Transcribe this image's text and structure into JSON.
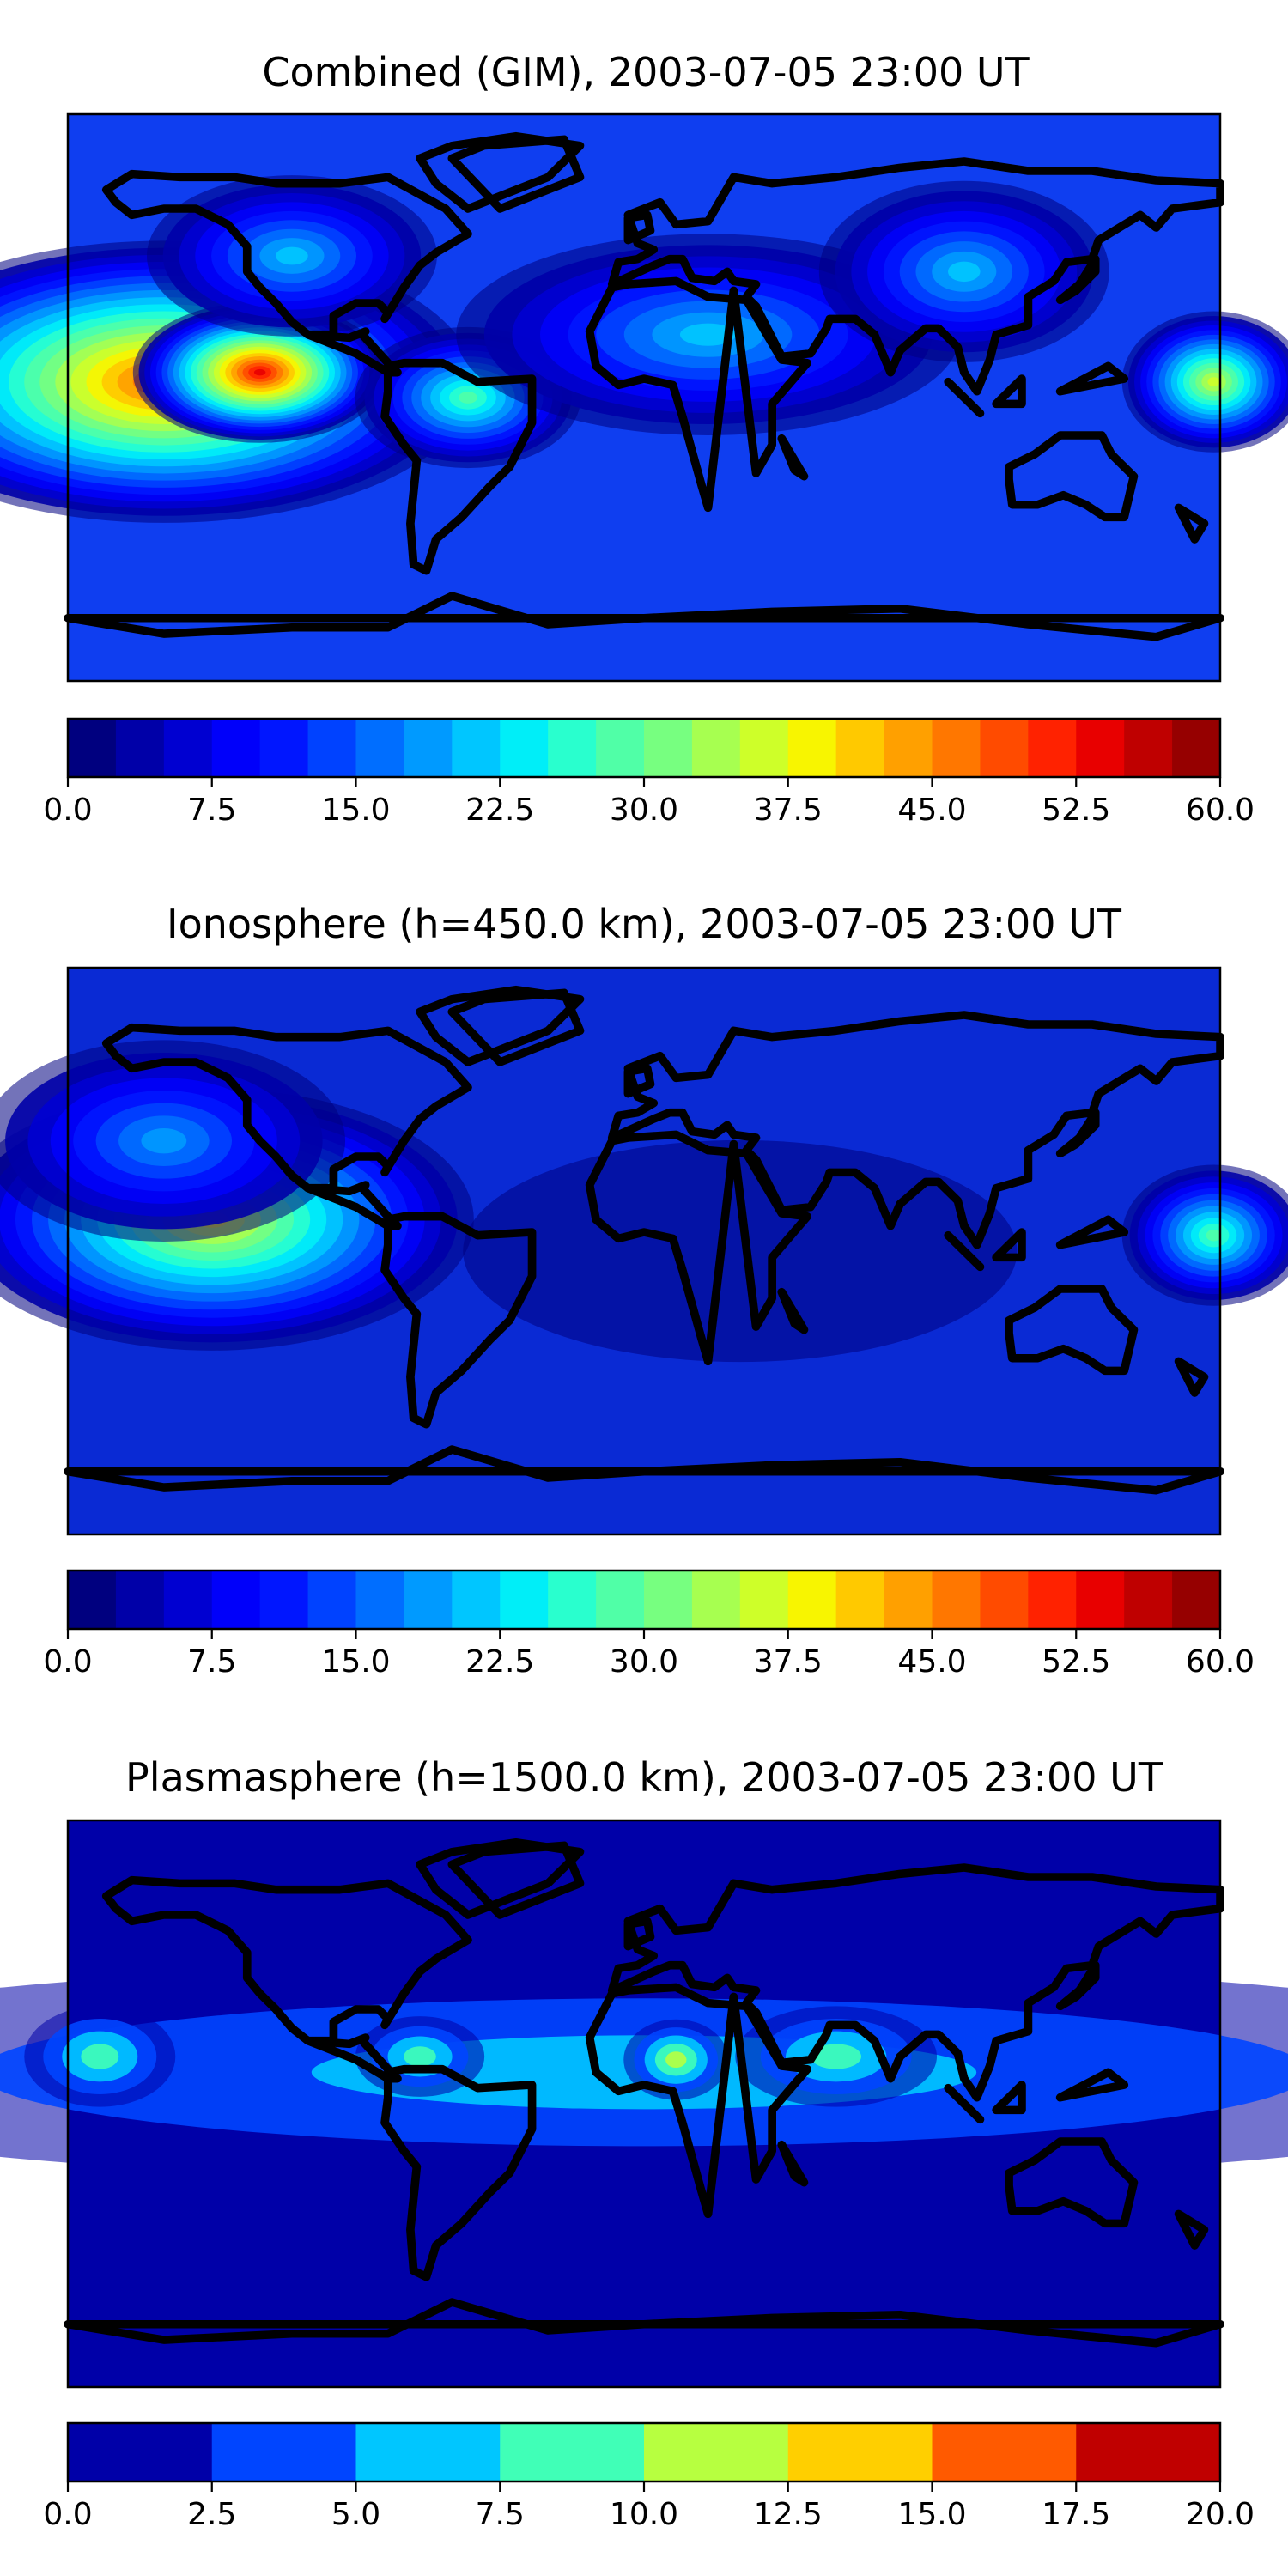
{
  "figure": {
    "panels": [
      {
        "title": "Combined (GIM), 2003-07-05 23:00 UT",
        "colorbar": {
          "ticks": [
            "0.0",
            "7.5",
            "15.0",
            "22.5",
            "30.0",
            "37.5",
            "45.0",
            "52.5",
            "60.0"
          ],
          "range": [
            0,
            60
          ],
          "levels": 24,
          "colors": [
            "#00007f",
            "#0000a8",
            "#0000d1",
            "#0000fa",
            "#0016ff",
            "#0042ff",
            "#006eff",
            "#009aff",
            "#00c6ff",
            "#00eef8",
            "#29ffce",
            "#50ffa7",
            "#77ff80",
            "#a7ff50",
            "#ceff29",
            "#f8f500",
            "#ffc900",
            "#ffa000",
            "#ff7700",
            "#ff4b00",
            "#ff2200",
            "#e80000",
            "#bf0000",
            "#960000"
          ]
        },
        "map": {
          "background": "#0f3ef0",
          "blobs": [
            {
              "lon": -150,
              "lat": 5,
              "value": 50,
              "spread": 28,
              "stretch": 2.2
            },
            {
              "lon": -120,
              "lat": 8,
              "value": 55,
              "spread": 14,
              "stretch": 1.8
            },
            {
              "lon": 178,
              "lat": 5,
              "value": 38,
              "spread": 14,
              "stretch": 1.3
            },
            {
              "lon": -55,
              "lat": 0,
              "value": 30,
              "spread": 14,
              "stretch": 1.6
            },
            {
              "lon": 20,
              "lat": 20,
              "value": 22,
              "spread": 20,
              "stretch": 2.5
            },
            {
              "lon": 100,
              "lat": 40,
              "value": 22,
              "spread": 18,
              "stretch": 1.6
            },
            {
              "lon": -110,
              "lat": 45,
              "value": 22,
              "spread": 16,
              "stretch": 1.8
            }
          ]
        }
      },
      {
        "title": "Ionosphere  (h=450.0 km), 2003-07-05 23:00 UT",
        "colorbar": {
          "ticks": [
            "0.0",
            "7.5",
            "15.0",
            "22.5",
            "30.0",
            "37.5",
            "45.0",
            "52.5",
            "60.0"
          ],
          "range": [
            0,
            60
          ],
          "levels": 24,
          "colors": [
            "#00007f",
            "#0000a8",
            "#0000d1",
            "#0000fa",
            "#0016ff",
            "#0042ff",
            "#006eff",
            "#009aff",
            "#00c6ff",
            "#00eef8",
            "#29ffce",
            "#50ffa7",
            "#77ff80",
            "#a7ff50",
            "#ceff29",
            "#f8f500",
            "#ffc900",
            "#ffa000",
            "#ff7700",
            "#ff4b00",
            "#ff2200",
            "#e80000",
            "#bf0000",
            "#960000"
          ]
        },
        "map": {
          "background": "#0a2ad4",
          "blobs": [
            {
              "lon": -135,
              "lat": 10,
              "value": 40,
              "spread": 26,
              "stretch": 2.0
            },
            {
              "lon": 178,
              "lat": 5,
              "value": 30,
              "spread": 14,
              "stretch": 1.3
            },
            {
              "lon": -150,
              "lat": 35,
              "value": 20,
              "spread": 20,
              "stretch": 1.8
            },
            {
              "lon": 30,
              "lat": 0,
              "value": 2,
              "spread": 22,
              "stretch": 2.5
            }
          ]
        }
      },
      {
        "title": "Plasmasphere (h=1500.0 km), 2003-07-05 23:00 UT",
        "colorbar": {
          "ticks": [
            "0.0",
            "2.5",
            "5.0",
            "7.5",
            "10.0",
            "12.5",
            "15.0",
            "17.5",
            "20.0"
          ],
          "range": [
            0,
            20
          ],
          "levels": 8,
          "colors": [
            "#0000a8",
            "#0045ff",
            "#00c6ff",
            "#40ffb7",
            "#b7ff40",
            "#ffcf00",
            "#ff5a00",
            "#c00000"
          ]
        },
        "map": {
          "background": "#0000a8",
          "blobs": [
            {
              "lon": 0,
              "lat": 10,
              "value": 7.5,
              "spread": 22,
              "stretch": 9.0
            },
            {
              "lon": -170,
              "lat": 15,
              "value": 10.5,
              "spread": 10,
              "stretch": 1.5
            },
            {
              "lon": 10,
              "lat": 14,
              "value": 12.5,
              "spread": 8,
              "stretch": 1.3
            },
            {
              "lon": -70,
              "lat": 15,
              "value": 10.5,
              "spread": 8,
              "stretch": 1.6
            },
            {
              "lon": 60,
              "lat": 15,
              "value": 9,
              "spread": 10,
              "stretch": 2.0
            }
          ]
        }
      }
    ],
    "coastline_color": "#000000"
  }
}
